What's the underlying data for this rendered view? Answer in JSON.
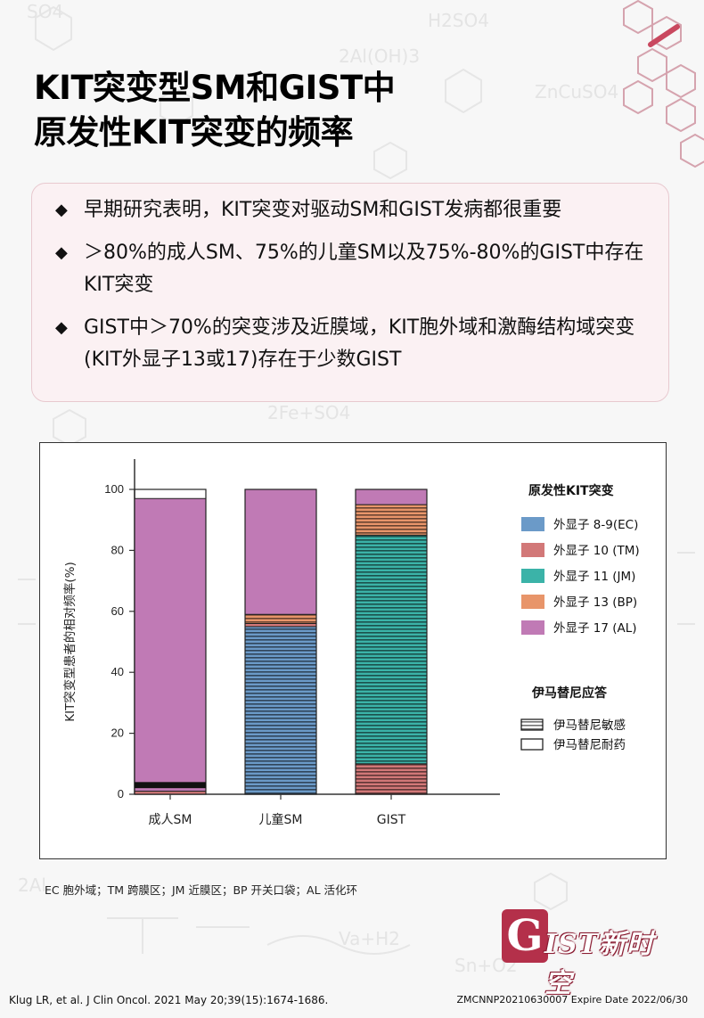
{
  "title": {
    "line1": "KIT突变型SM和GIST中",
    "line2": "原发性KIT突变的频率"
  },
  "bullets": [
    {
      "text": "早期研究表明，KIT突变对驱动SM和GIST发病都很重要"
    },
    {
      "text": "＞80%的成人SM、75%的儿童SM以及75%-80%的GIST中存在KIT突变"
    },
    {
      "text": "GIST中＞70%的突变涉及近膜域，KIT胞外域和激酶结构域突变(KIT外显子13或17)存在于少数GIST"
    }
  ],
  "bullet_icon": "black-diamond-icon",
  "chart_data": {
    "type": "bar",
    "stacked": true,
    "categories": [
      "成人SM",
      "儿童SM",
      "GIST"
    ],
    "ylabel": "KIT突变型患者的相对频率(%)",
    "xlabel": "",
    "ylim": [
      0,
      100
    ],
    "yticks": [
      0,
      20,
      40,
      60,
      80,
      100
    ],
    "legend_title": "原发性KIT突变",
    "legend_placement": "right",
    "series": [
      {
        "name": "外显子 8-9(EC)",
        "color": "#6b9ac8",
        "values": [
          0,
          55,
          0
        ],
        "response": [
          "",
          "sensitive",
          ""
        ]
      },
      {
        "name": "外显子 10 (TM)",
        "color": "#d27878",
        "values": [
          1,
          1,
          10
        ],
        "response": [
          "resistant",
          "resistant",
          "sensitive"
        ]
      },
      {
        "name": "外显子 11 (JM)",
        "color": "#3bb3a8",
        "values": [
          0,
          0,
          75
        ],
        "response": [
          "",
          "",
          "sensitive"
        ]
      },
      {
        "name": "外显子 13 (BP)",
        "color": "#e8956a",
        "values": [
          0,
          3,
          10
        ],
        "response": [
          "",
          "sensitive",
          "sensitive"
        ]
      },
      {
        "name": "外显子 17 (AL)",
        "color": "#c07ab5",
        "values": [
          96,
          41,
          5
        ],
        "response": [
          "resistant",
          "resistant",
          "resistant"
        ]
      }
    ],
    "black_segment": {
      "category": "成人SM",
      "from": 2,
      "to": 4
    },
    "response_legend_title": "伊马替尼应答",
    "response_legend": [
      {
        "key": "sensitive",
        "label": "伊马替尼敏感"
      },
      {
        "key": "resistant",
        "label": "伊马替尼耐药"
      }
    ]
  },
  "footnote": "EC 胞外域；TM 跨膜区；JM 近膜区；BP 开关口袋；AL 活化环",
  "logo": {
    "letter": "G",
    "text": "IST新时空"
  },
  "reference": "Klug LR, et al. J Clin Oncol. 2021 May 20;39(15):1674-1686.",
  "code": "ZMCNNP20210630007 Expire Date 2022/06/30"
}
